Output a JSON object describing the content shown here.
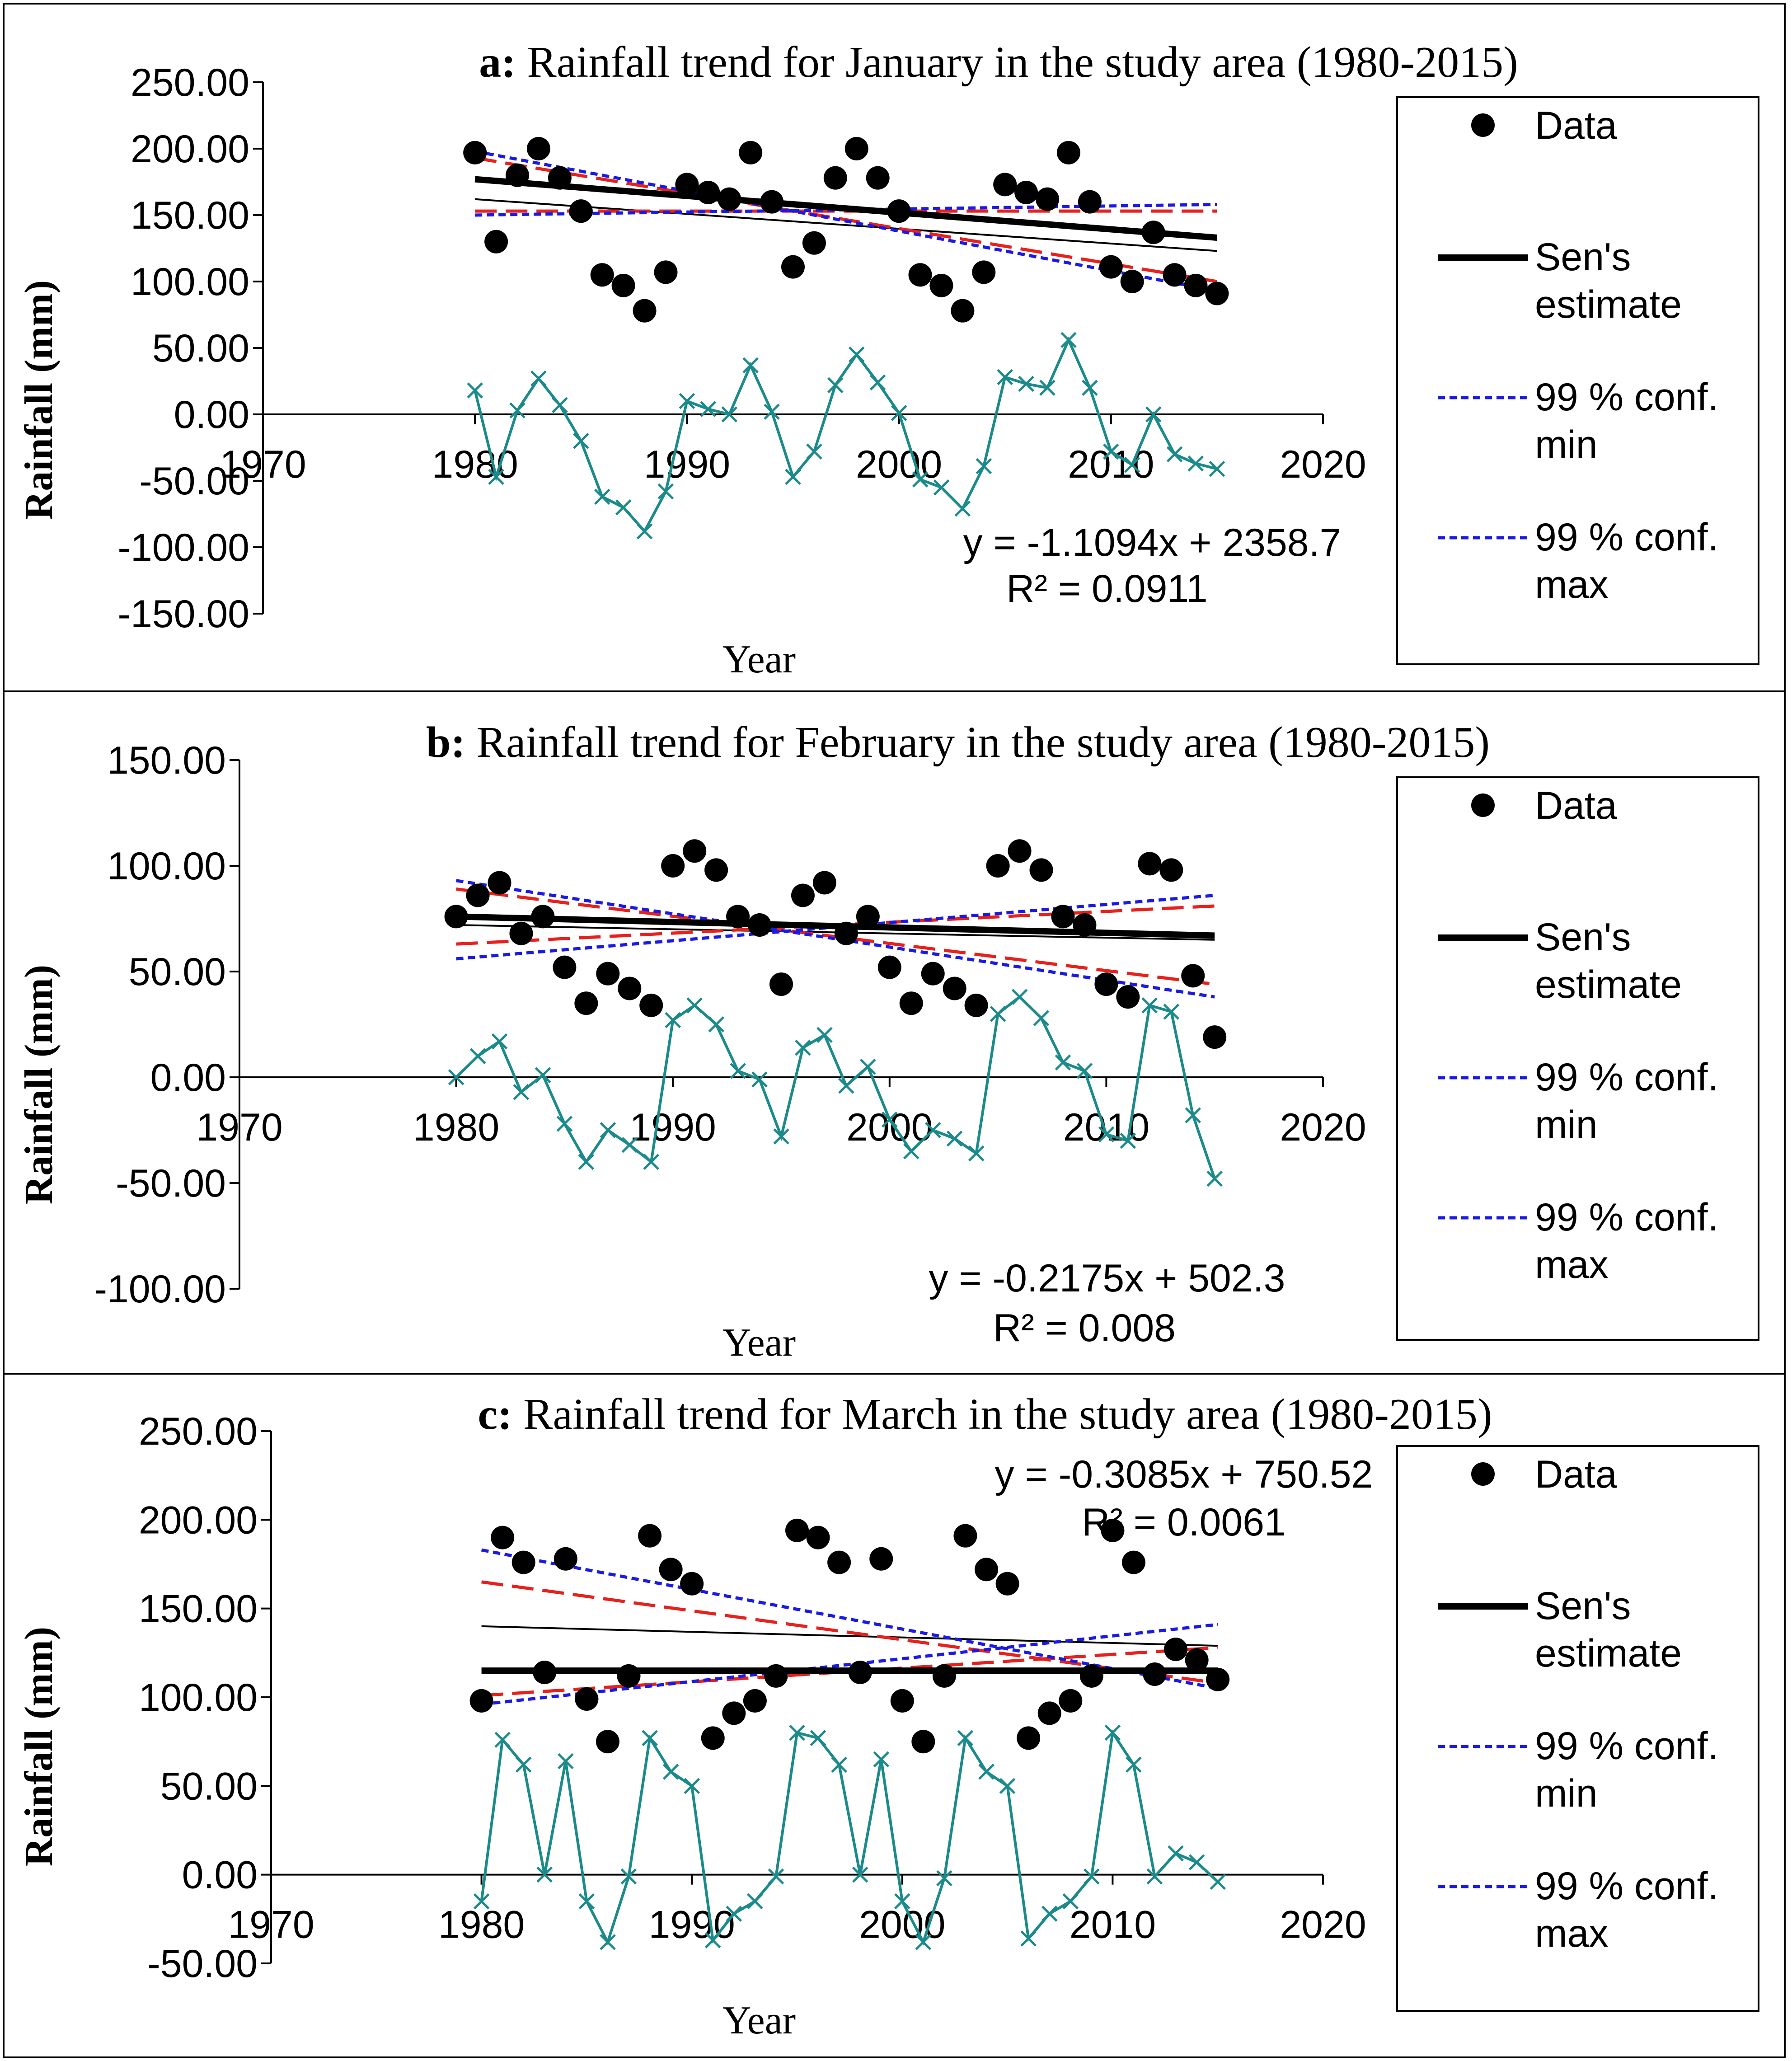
{
  "chart_data": [
    {
      "id": "a",
      "type": "scatter",
      "title_prefix": "a:",
      "title": "Rainfall trend for January in the study area  (1980-2015)",
      "xlabel": "Year",
      "ylabel": "Rainfall (mm)",
      "xlim": [
        1970,
        2020
      ],
      "ylim": [
        -150,
        250
      ],
      "yticks": [
        "250.00",
        "200.00",
        "150.00",
        "100.00",
        "50.00",
        "0.00",
        "-50.00",
        "-100.00",
        "-150.00"
      ],
      "xticks": [
        "1970",
        "1980",
        "1990",
        "2000",
        "2010",
        "2020"
      ],
      "years": [
        1980,
        1981,
        1982,
        1983,
        1984,
        1985,
        1986,
        1987,
        1988,
        1989,
        1990,
        1991,
        1992,
        1993,
        1994,
        1995,
        1996,
        1997,
        1998,
        1999,
        2000,
        2001,
        2002,
        2003,
        2004,
        2005,
        2006,
        2007,
        2008,
        2009,
        2010,
        2011,
        2012,
        2013,
        2014,
        2015
      ],
      "data": [
        197,
        130,
        180,
        200,
        178,
        153,
        105,
        97,
        78,
        107,
        173,
        167,
        162,
        197,
        160,
        111,
        129,
        178,
        200,
        178,
        153,
        105,
        97,
        78,
        107,
        173,
        167,
        162,
        197,
        160,
        111,
        100,
        137,
        105,
        97,
        91
      ],
      "residuals": [
        18,
        -47,
        3,
        27,
        7,
        -20,
        -62,
        -70,
        -88,
        -58,
        10,
        4,
        0,
        37,
        2,
        -47,
        -28,
        22,
        45,
        24,
        1,
        -49,
        -55,
        -71,
        -39,
        28,
        23,
        20,
        56,
        20,
        -28,
        -38,
        0,
        -30,
        -37,
        -41
      ],
      "sen_estimate": [
        177,
        133
      ],
      "linear_fit": [
        162,
        123
      ],
      "conf99_min": [
        198,
        93
      ],
      "conf99_max": [
        150,
        158
      ],
      "conf95_min": [
        193,
        100
      ],
      "conf95_max": [
        153,
        153
      ],
      "equation": "y = -1.1094x + 2358.7",
      "r2": "R² = 0.0911",
      "legend": [
        "Data",
        "Sen's",
        "estimate",
        "99 % conf.",
        "min",
        "99 % conf.",
        "max"
      ]
    },
    {
      "id": "b",
      "type": "scatter",
      "title_prefix": "b:",
      "title": "Rainfall trend for February in the study area (1980-2015)",
      "xlabel": "Year",
      "ylabel": "Rainfall (mm)",
      "xlim": [
        1970,
        2020
      ],
      "ylim": [
        -100,
        150
      ],
      "yticks": [
        "150.00",
        "100.00",
        "50.00",
        "0.00",
        "-50.00",
        "-100.00"
      ],
      "xticks": [
        "1970",
        "1980",
        "1990",
        "2000",
        "2010",
        "2020"
      ],
      "years": [
        1980,
        1981,
        1982,
        1983,
        1984,
        1985,
        1986,
        1987,
        1988,
        1989,
        1990,
        1991,
        1992,
        1993,
        1994,
        1995,
        1996,
        1997,
        1998,
        1999,
        2000,
        2001,
        2002,
        2003,
        2004,
        2005,
        2006,
        2007,
        2008,
        2009,
        2010,
        2011,
        2012,
        2013,
        2014,
        2015
      ],
      "data": [
        76,
        86,
        92,
        68,
        76,
        52,
        35,
        49,
        42,
        34,
        100,
        107,
        98,
        76,
        72,
        44,
        86,
        92,
        68,
        76,
        52,
        35,
        49,
        42,
        34,
        100,
        107,
        98,
        76,
        72,
        44,
        38,
        101,
        98,
        48,
        19
      ],
      "residuals": [
        0,
        10,
        17,
        -7,
        1,
        -22,
        -40,
        -25,
        -32,
        -40,
        27,
        34,
        25,
        3,
        -1,
        -28,
        14,
        20,
        -4,
        5,
        -20,
        -35,
        -25,
        -29,
        -36,
        30,
        38,
        28,
        7,
        3,
        -27,
        -30,
        34,
        31,
        -18,
        -48
      ],
      "sen_estimate": [
        76,
        67
      ],
      "linear_fit": [
        72,
        65
      ],
      "conf99_min": [
        93,
        38
      ],
      "conf99_max": [
        56,
        86
      ],
      "conf95_min": [
        89,
        44
      ],
      "conf95_max": [
        63,
        81
      ],
      "equation": "y = -0.2175x + 502.3",
      "r2": "R² = 0.008",
      "legend": [
        "Data",
        "Sen's",
        "estimate",
        "99 % conf.",
        "min",
        "99 % conf.",
        "max"
      ]
    },
    {
      "id": "c",
      "type": "scatter",
      "title_prefix": "c:",
      "title": "Rainfall trend for March in the study area (1980-2015)",
      "xlabel": "Year",
      "ylabel": "Rainfall (mm)",
      "xlim": [
        1970,
        2020
      ],
      "ylim": [
        -50,
        250
      ],
      "yticks": [
        "250.00",
        "200.00",
        "150.00",
        "100.00",
        "50.00",
        "0.00",
        "-50.00"
      ],
      "xticks": [
        "1970",
        "1980",
        "1990",
        "2000",
        "2010",
        "2020"
      ],
      "years": [
        1980,
        1981,
        1982,
        1983,
        1984,
        1985,
        1986,
        1987,
        1988,
        1989,
        1990,
        1991,
        1992,
        1993,
        1994,
        1995,
        1996,
        1997,
        1998,
        1999,
        2000,
        2001,
        2002,
        2003,
        2004,
        2005,
        2006,
        2007,
        2008,
        2009,
        2010,
        2011,
        2012,
        2013,
        2014,
        2015
      ],
      "data": [
        98,
        190,
        176,
        114,
        178,
        99,
        75,
        112,
        191,
        172,
        164,
        77,
        91,
        98,
        112,
        194,
        190,
        176,
        114,
        178,
        98,
        75,
        112,
        191,
        172,
        164,
        77,
        91,
        98,
        112,
        194,
        176,
        113,
        127,
        121,
        110
      ],
      "residuals": [
        -15,
        76,
        62,
        0,
        64,
        -15,
        -38,
        -1,
        77,
        58,
        50,
        -37,
        -22,
        -15,
        -1,
        80,
        77,
        62,
        0,
        65,
        -15,
        -38,
        -2,
        77,
        58,
        50,
        -36,
        -22,
        -15,
        -1,
        80,
        62,
        -1,
        12,
        7,
        -4
      ],
      "sen_estimate": [
        115,
        115
      ],
      "linear_fit": [
        140,
        129
      ],
      "conf99_min": [
        183,
        105
      ],
      "conf99_max": [
        96,
        141
      ],
      "conf95_min": [
        165,
        108
      ],
      "conf95_max": [
        101,
        128
      ],
      "equation": "y = -0.3085x + 750.52",
      "r2": "R² = 0.0061",
      "legend": [
        "Data",
        "Sen's",
        "estimate",
        "99 % conf.",
        "min",
        "99 % conf.",
        "max"
      ]
    }
  ]
}
